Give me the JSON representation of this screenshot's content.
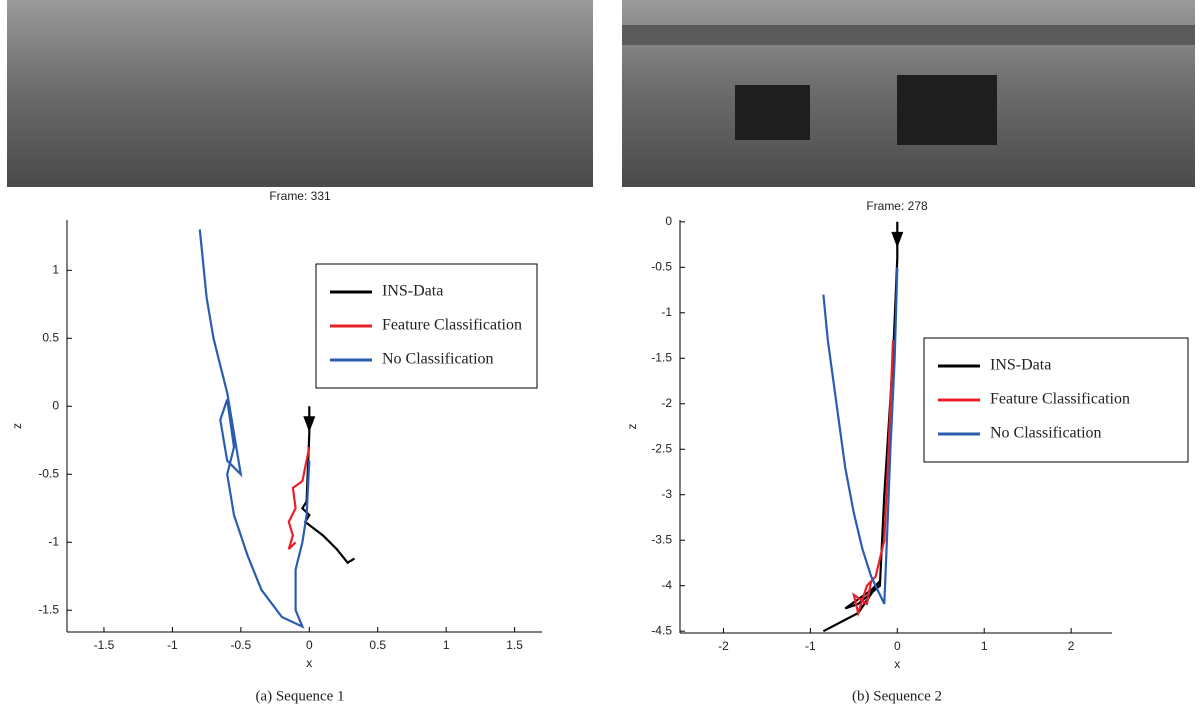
{
  "chart_data": [
    {
      "type": "line",
      "image_label": "Frame: 331",
      "caption": "(a)  Sequence 1",
      "xlabel": "x",
      "ylabel": "z",
      "xlim": [
        -1.77,
        1.7
      ],
      "ylim": [
        -1.66,
        1.37
      ],
      "xticks": [
        -1.5,
        -1,
        -0.5,
        0,
        0.5,
        1,
        1.5
      ],
      "yticks": [
        -1.5,
        -1,
        -0.5,
        0,
        0.5,
        1
      ],
      "legend": "upper right",
      "series": [
        {
          "name": "INS-Data",
          "color": "#000000",
          "x": [
            0,
            0,
            -0.02,
            -0.05,
            0,
            -0.03,
            0.1,
            0.2,
            0.28,
            0.33
          ],
          "values": [
            0,
            -0.2,
            -0.7,
            -0.75,
            -0.8,
            -0.85,
            -0.95,
            -1.05,
            -1.15,
            -1.12
          ]
        },
        {
          "name": "Feature Classification",
          "color": "#e8202a",
          "x": [
            0,
            -0.05,
            -0.12,
            -0.1,
            -0.15,
            -0.12,
            -0.15,
            -0.1
          ],
          "values": [
            -0.3,
            -0.55,
            -0.6,
            -0.75,
            -0.85,
            -0.95,
            -1.05,
            -1.0
          ]
        },
        {
          "name": "No Classification",
          "color": "#2a5db0",
          "x": [
            -0.8,
            -0.75,
            -0.7,
            -0.65,
            -0.6,
            -0.55,
            -0.5,
            -0.6,
            -0.65,
            -0.6,
            -0.55,
            -0.6,
            -0.55,
            -0.45,
            -0.35,
            -0.2,
            -0.05,
            -0.1,
            -0.1,
            -0.05,
            -0.02,
            0
          ],
          "values": [
            1.3,
            0.8,
            0.5,
            0.3,
            0.1,
            -0.2,
            -0.5,
            -0.4,
            -0.1,
            0.05,
            -0.3,
            -0.5,
            -0.8,
            -1.1,
            -1.35,
            -1.55,
            -1.62,
            -1.5,
            -1.2,
            -1.0,
            -0.8,
            -0.4
          ]
        }
      ]
    },
    {
      "type": "line",
      "image_label": "Frame: 278",
      "caption": "(b)  Sequence 2",
      "xlabel": "x",
      "ylabel": "z",
      "xlim": [
        -2.5,
        2.47
      ],
      "ylim": [
        -4.52,
        0.02
      ],
      "xticks": [
        -2,
        -1,
        0,
        1,
        2
      ],
      "yticks": [
        0,
        -0.5,
        -1,
        -1.5,
        -2,
        -2.5,
        -3,
        -3.5,
        -4,
        -4.5
      ],
      "legend": "center right",
      "series": [
        {
          "name": "INS-Data",
          "color": "#000000",
          "x": [
            0,
            0,
            -0.05,
            -0.15,
            -0.2,
            -0.45,
            -0.6,
            -0.3,
            -0.2,
            -0.45,
            -0.85
          ],
          "values": [
            0,
            -0.4,
            -1.5,
            -3.0,
            -4.0,
            -4.2,
            -4.25,
            -4.05,
            -3.95,
            -4.3,
            -4.5
          ]
        },
        {
          "name": "Feature Classification",
          "color": "#e8202a",
          "x": [
            -0.05,
            -0.1,
            -0.15,
            -0.25,
            -0.35,
            -0.45,
            -0.5,
            -0.35,
            -0.3
          ],
          "values": [
            -1.3,
            -2.5,
            -3.5,
            -3.9,
            -4.0,
            -4.3,
            -4.1,
            -4.2,
            -3.95
          ]
        },
        {
          "name": "No Classification",
          "color": "#2a5db0",
          "x": [
            -0.85,
            -0.8,
            -0.7,
            -0.6,
            -0.5,
            -0.4,
            -0.3,
            -0.15,
            -0.12,
            -0.08,
            -0.03,
            0
          ],
          "values": [
            -0.8,
            -1.3,
            -2.0,
            -2.7,
            -3.2,
            -3.6,
            -3.9,
            -4.2,
            -3.5,
            -2.5,
            -1.5,
            -0.5
          ]
        }
      ]
    }
  ]
}
